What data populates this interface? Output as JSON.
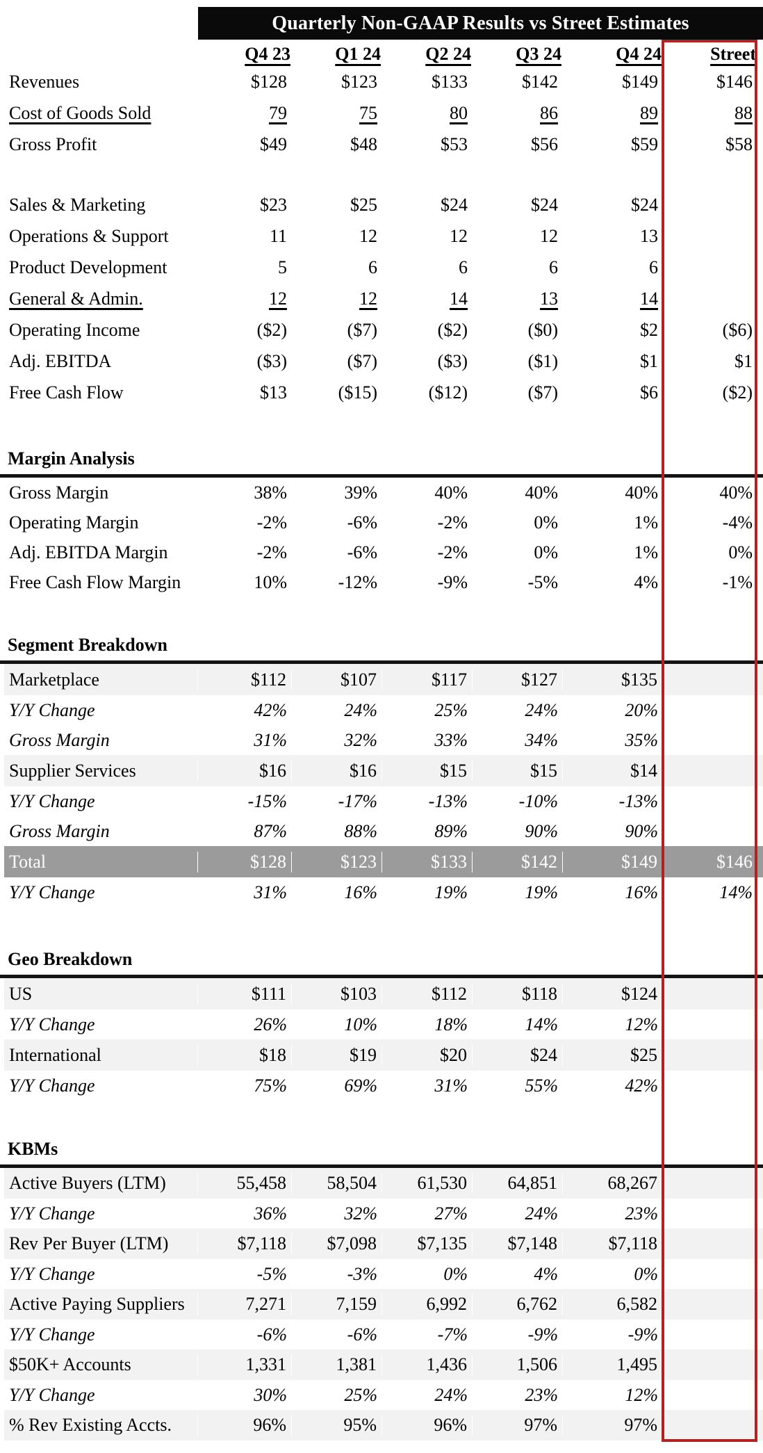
{
  "title": "Quarterly Non-GAAP Results vs Street Estimates",
  "columns": {
    "c1": "Q4 23",
    "c2": "Q1 24",
    "c3": "Q2 24",
    "c4": "Q3 24",
    "c5": "Q4 24",
    "c6": "Street"
  },
  "pnl": {
    "rows": [
      {
        "label": "Revenues",
        "v": [
          "$128",
          "$123",
          "$133",
          "$142",
          "$149"
        ],
        "street": "$146"
      },
      {
        "label": "Cost of Goods Sold",
        "v": [
          "79",
          "75",
          "80",
          "86",
          "89"
        ],
        "street": "88"
      },
      {
        "label": "Gross Profit",
        "v": [
          "$49",
          "$48",
          "$53",
          "$56",
          "$59"
        ],
        "street": "$58"
      },
      {
        "label": "Sales & Marketing",
        "v": [
          "$23",
          "$25",
          "$24",
          "$24",
          "$24"
        ],
        "street": ""
      },
      {
        "label": "Operations & Support",
        "v": [
          "11",
          "12",
          "12",
          "12",
          "13"
        ],
        "street": ""
      },
      {
        "label": "Product Development",
        "v": [
          "5",
          "6",
          "6",
          "6",
          "6"
        ],
        "street": ""
      },
      {
        "label": "General & Admin.",
        "v": [
          "12",
          "12",
          "14",
          "13",
          "14"
        ],
        "street": ""
      },
      {
        "label": "Operating Income",
        "v": [
          "($2)",
          "($7)",
          "($2)",
          "($0)",
          "$2"
        ],
        "street": "($6)"
      },
      {
        "label": "Adj. EBITDA",
        "v": [
          "($3)",
          "($7)",
          "($3)",
          "($1)",
          "$1"
        ],
        "street": "$1"
      },
      {
        "label": "Free Cash Flow",
        "v": [
          "$13",
          "($15)",
          "($12)",
          "($7)",
          "$6"
        ],
        "street": "($2)"
      }
    ]
  },
  "margins": {
    "title": "Margin Analysis",
    "rows": [
      {
        "label": "Gross Margin",
        "v": [
          "38%",
          "39%",
          "40%",
          "40%",
          "40%"
        ],
        "street": "40%"
      },
      {
        "label": "Operating Margin",
        "v": [
          "-2%",
          "-6%",
          "-2%",
          "0%",
          "1%"
        ],
        "street": "-4%"
      },
      {
        "label": "Adj. EBITDA Margin",
        "v": [
          "-2%",
          "-6%",
          "-2%",
          "0%",
          "1%"
        ],
        "street": "0%"
      },
      {
        "label": "Free Cash Flow Margin",
        "v": [
          "10%",
          "-12%",
          "-9%",
          "-5%",
          "4%"
        ],
        "street": "-1%"
      }
    ]
  },
  "segments": {
    "title": "Segment Breakdown",
    "rows": [
      {
        "label": "Marketplace",
        "v": [
          "$112",
          "$107",
          "$117",
          "$127",
          "$135"
        ],
        "street": ""
      },
      {
        "label": "Y/Y Change",
        "v": [
          "42%",
          "24%",
          "25%",
          "24%",
          "20%"
        ],
        "street": ""
      },
      {
        "label": "Gross Margin",
        "v": [
          "31%",
          "32%",
          "33%",
          "34%",
          "35%"
        ],
        "street": ""
      },
      {
        "label": "Supplier Services",
        "v": [
          "$16",
          "$16",
          "$15",
          "$15",
          "$14"
        ],
        "street": ""
      },
      {
        "label": "Y/Y Change",
        "v": [
          "-15%",
          "-17%",
          "-13%",
          "-10%",
          "-13%"
        ],
        "street": ""
      },
      {
        "label": "Gross Margin",
        "v": [
          "87%",
          "88%",
          "89%",
          "90%",
          "90%"
        ],
        "street": ""
      },
      {
        "label": "Total",
        "v": [
          "$128",
          "$123",
          "$133",
          "$142",
          "$149"
        ],
        "street": "$146"
      },
      {
        "label": "Y/Y Change",
        "v": [
          "31%",
          "16%",
          "19%",
          "19%",
          "16%"
        ],
        "street": "14%"
      }
    ]
  },
  "geo": {
    "title": "Geo Breakdown",
    "rows": [
      {
        "label": "US",
        "v": [
          "$111",
          "$103",
          "$112",
          "$118",
          "$124"
        ],
        "street": ""
      },
      {
        "label": "Y/Y Change",
        "v": [
          "26%",
          "10%",
          "18%",
          "14%",
          "12%"
        ],
        "street": ""
      },
      {
        "label": "International",
        "v": [
          "$18",
          "$19",
          "$20",
          "$24",
          "$25"
        ],
        "street": ""
      },
      {
        "label": "Y/Y Change",
        "v": [
          "75%",
          "69%",
          "31%",
          "55%",
          "42%"
        ],
        "street": ""
      }
    ]
  },
  "kbms": {
    "title": "KBMs",
    "rows": [
      {
        "label": "Active Buyers (LTM)",
        "v": [
          "55,458",
          "58,504",
          "61,530",
          "64,851",
          "68,267"
        ],
        "street": ""
      },
      {
        "label": "Y/Y Change",
        "v": [
          "36%",
          "32%",
          "27%",
          "24%",
          "23%"
        ],
        "street": ""
      },
      {
        "label": "Rev Per Buyer (LTM)",
        "v": [
          "$7,118",
          "$7,098",
          "$7,135",
          "$7,148",
          "$7,118"
        ],
        "street": ""
      },
      {
        "label": "Y/Y Change",
        "v": [
          "-5%",
          "-3%",
          "0%",
          "4%",
          "0%"
        ],
        "street": ""
      },
      {
        "label": "Active Paying Suppliers",
        "v": [
          "7,271",
          "7,159",
          "6,992",
          "6,762",
          "6,582"
        ],
        "street": ""
      },
      {
        "label": "Y/Y Change",
        "v": [
          "-6%",
          "-6%",
          "-7%",
          "-9%",
          "-9%"
        ],
        "street": ""
      },
      {
        "label": "$50K+ Accounts",
        "v": [
          "1,331",
          "1,381",
          "1,436",
          "1,506",
          "1,495"
        ],
        "street": ""
      },
      {
        "label": "Y/Y Change",
        "v": [
          "30%",
          "25%",
          "24%",
          "23%",
          "12%"
        ],
        "street": ""
      },
      {
        "label": "% Rev Existing Accts.",
        "v": [
          "96%",
          "95%",
          "96%",
          "97%",
          "97%"
        ],
        "street": ""
      }
    ]
  }
}
